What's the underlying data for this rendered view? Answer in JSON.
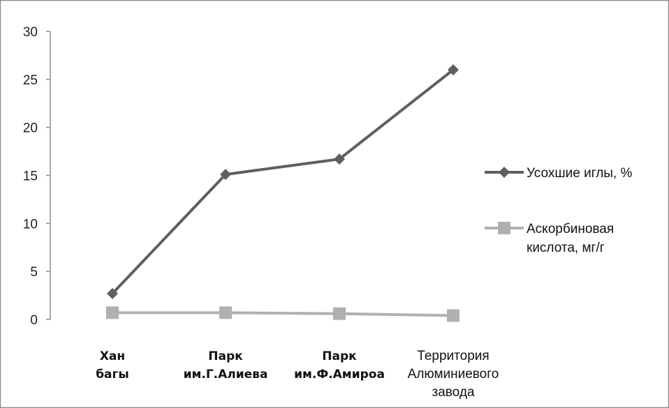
{
  "chart_data": {
    "type": "line",
    "categories": [
      {
        "lines": [
          "Хан",
          "багы"
        ],
        "bold": true
      },
      {
        "lines": [
          "Парк",
          "им.Г.Алиева"
        ],
        "bold": true
      },
      {
        "lines": [
          "Парк",
          "им.Ф.Амироа"
        ],
        "bold": true
      },
      {
        "lines": [
          "Территория",
          "Алюминиевого",
          "завода"
        ],
        "bold": false
      }
    ],
    "series": [
      {
        "name": "Усохшие иглы, %",
        "values": [
          2.7,
          15.1,
          16.7,
          26.0
        ],
        "color": "#5f5f5f",
        "marker": "diamond"
      },
      {
        "name_lines": [
          "Аскорбиновая",
          "кислота, мг/г"
        ],
        "values": [
          0.7,
          0.7,
          0.6,
          0.4
        ],
        "color": "#b0b0b0",
        "marker": "square"
      }
    ],
    "ylim": [
      0,
      30
    ],
    "yticks": [
      0,
      5,
      10,
      15,
      20,
      25,
      30
    ],
    "grid": false,
    "legend_position": "right"
  }
}
